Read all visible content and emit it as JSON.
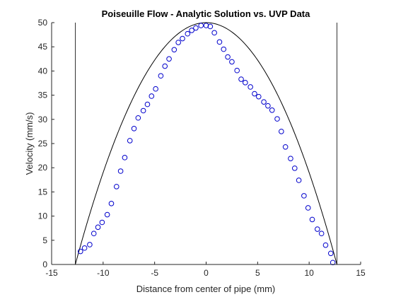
{
  "chart_data": {
    "type": "scatter",
    "title": "Poiseuille Flow - Analytic Solution vs. UVP Data",
    "xlabel": "Distance from center of pipe (mm)",
    "ylabel": "Velocity (mm/s)",
    "xlim": [
      -15,
      15
    ],
    "ylim": [
      0,
      50
    ],
    "xticks": [
      -15,
      -10,
      -5,
      0,
      5,
      10,
      15
    ],
    "yticks": [
      0,
      5,
      10,
      15,
      20,
      25,
      30,
      35,
      40,
      45,
      50
    ],
    "grid": false,
    "legend": "none",
    "pipe_walls": [
      -12.7,
      12.7
    ],
    "series": [
      {
        "kind": "line",
        "curve": "parabola",
        "peak_x": 0,
        "peak_y": 50,
        "root_left": -12.7,
        "root_right": 12.7,
        "color": "#000000"
      },
      {
        "kind": "scatter",
        "marker": "circle",
        "color": "#0000CC",
        "x": [
          -12.2,
          -11.8,
          -11.3,
          -10.9,
          -10.5,
          -10.1,
          -9.6,
          -9.2,
          -8.7,
          -8.3,
          -7.9,
          -7.4,
          -7.0,
          -6.6,
          -6.1,
          -5.7,
          -5.3,
          -4.9,
          -4.4,
          -4.0,
          -3.6,
          -3.1,
          -2.7,
          -2.3,
          -1.8,
          -1.4,
          -1.0,
          -0.5,
          0.0,
          0.4,
          0.8,
          1.3,
          1.7,
          2.1,
          2.5,
          3.0,
          3.4,
          3.8,
          4.3,
          4.7,
          5.1,
          5.6,
          6.0,
          6.4,
          6.9,
          7.3,
          7.7,
          8.2,
          8.6,
          9.0,
          9.5,
          9.9,
          10.3,
          10.8,
          11.2,
          11.6,
          12.1,
          12.3
        ],
        "y": [
          2.7,
          3.4,
          4.1,
          6.4,
          7.7,
          8.7,
          10.3,
          12.6,
          16.1,
          19.3,
          22.1,
          25.6,
          28.1,
          30.3,
          31.8,
          33.1,
          34.8,
          36.3,
          39.0,
          41.0,
          42.5,
          44.4,
          45.9,
          46.7,
          47.7,
          48.4,
          48.9,
          49.4,
          49.4,
          49.2,
          47.9,
          46.0,
          44.5,
          42.9,
          41.9,
          40.1,
          38.3,
          37.6,
          36.7,
          35.3,
          34.7,
          33.6,
          32.8,
          31.9,
          30.1,
          27.5,
          24.3,
          21.9,
          19.9,
          17.4,
          14.2,
          11.7,
          9.3,
          7.3,
          6.4,
          4.0,
          2.3,
          0.4
        ]
      }
    ]
  }
}
